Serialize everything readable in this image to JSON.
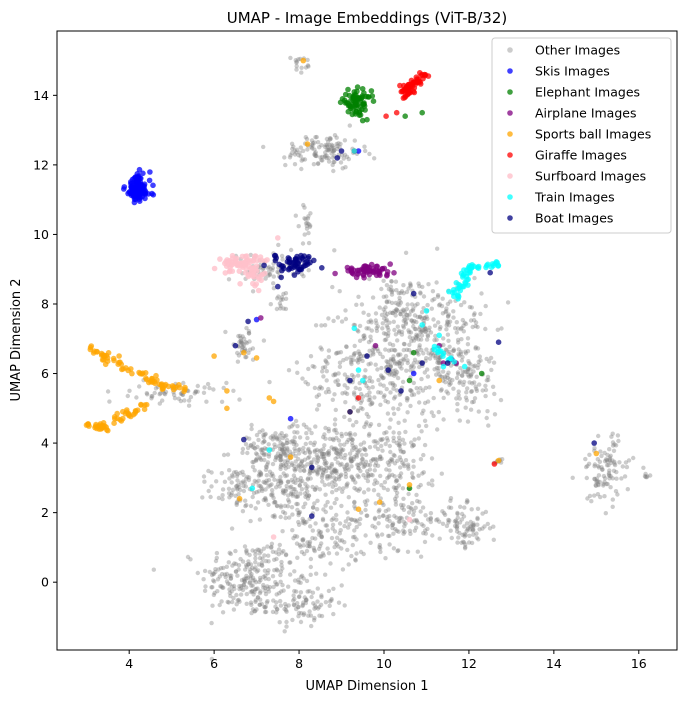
{
  "chart_data": {
    "type": "scatter",
    "title": "UMAP - Image Embeddings (ViT-B/32)",
    "xlabel": "UMAP Dimension 1",
    "ylabel": "UMAP Dimension 2",
    "xlim": [
      2.3,
      16.9
    ],
    "ylim": [
      -1.95,
      15.85
    ],
    "xticks": [
      4,
      6,
      8,
      10,
      12,
      14,
      16
    ],
    "yticks": [
      0,
      2,
      4,
      6,
      8,
      10,
      12,
      14
    ],
    "grid": false,
    "legend_position": "top-right",
    "series": [
      {
        "name": "Other Images",
        "color": "#808080",
        "opacity": 0.4,
        "clusters": [
          {
            "c": [
              6.8,
              0.1
            ],
            "s": [
              0.55,
              0.55
            ],
            "n": 220
          },
          {
            "c": [
              8.0,
              -0.6
            ],
            "s": [
              0.45,
              0.35
            ],
            "n": 100
          },
          {
            "c": [
              8.5,
              1.2
            ],
            "s": [
              0.55,
              0.45
            ],
            "n": 120
          },
          {
            "c": [
              7.9,
              2.7
            ],
            "s": [
              0.5,
              0.5
            ],
            "n": 180
          },
          {
            "c": [
              6.6,
              2.7
            ],
            "s": [
              0.35,
              0.3
            ],
            "n": 80
          },
          {
            "c": [
              7.4,
              3.8
            ],
            "s": [
              0.5,
              0.3
            ],
            "n": 120
          },
          {
            "c": [
              8.7,
              3.6
            ],
            "s": [
              0.65,
              0.5
            ],
            "n": 200
          },
          {
            "c": [
              10.0,
              3.4
            ],
            "s": [
              0.7,
              0.55
            ],
            "n": 170
          },
          {
            "c": [
              10.4,
              1.8
            ],
            "s": [
              0.6,
              0.4
            ],
            "n": 130
          },
          {
            "c": [
              11.9,
              1.6
            ],
            "s": [
              0.3,
              0.3
            ],
            "n": 80
          },
          {
            "c": [
              9.7,
              6.0
            ],
            "s": [
              0.8,
              1.0
            ],
            "n": 340
          },
          {
            "c": [
              11.2,
              7.0
            ],
            "s": [
              0.6,
              0.9
            ],
            "n": 260
          },
          {
            "c": [
              10.3,
              7.8
            ],
            "s": [
              0.5,
              0.5
            ],
            "n": 100
          },
          {
            "c": [
              12.0,
              5.8
            ],
            "s": [
              0.4,
              0.5
            ],
            "n": 90
          },
          {
            "c": [
              8.6,
              12.4
            ],
            "s": [
              0.45,
              0.25
            ],
            "n": 120
          },
          {
            "c": [
              7.2,
              9.0
            ],
            "s": [
              0.45,
              0.25
            ],
            "n": 70
          },
          {
            "c": [
              6.7,
              6.8
            ],
            "s": [
              0.2,
              0.25
            ],
            "n": 40
          },
          {
            "c": [
              5.2,
              5.45
            ],
            "s": [
              0.55,
              0.15
            ],
            "n": 60
          },
          {
            "c": [
              15.2,
              3.2
            ],
            "s": [
              0.3,
              0.5
            ],
            "n": 100
          },
          {
            "c": [
              8.0,
              14.9
            ],
            "s": [
              0.1,
              0.1
            ],
            "n": 15
          },
          {
            "c": [
              16.2,
              3.05
            ],
            "s": [
              0.05,
              0.03
            ],
            "n": 6
          },
          {
            "c": [
              12.7,
              3.5
            ],
            "s": [
              0.08,
              0.05
            ],
            "n": 8
          },
          {
            "c": [
              7.6,
              8.1
            ],
            "s": [
              0.12,
              0.12
            ],
            "n": 15
          },
          {
            "c": [
              8.2,
              10.3
            ],
            "s": [
              0.1,
              0.3
            ],
            "n": 20
          }
        ]
      },
      {
        "name": "Skis Images",
        "color": "#0000ff",
        "opacity": 0.75,
        "clusters": [
          {
            "c": [
              4.2,
              11.3
            ],
            "s": [
              0.15,
              0.22
            ],
            "n": 110
          }
        ],
        "points": [
          [
            7.0,
            7.55
          ],
          [
            7.8,
            4.7
          ],
          [
            9.4,
            12.4
          ],
          [
            10.7,
            6.0
          ]
        ]
      },
      {
        "name": "Elephant Images",
        "color": "#008000",
        "opacity": 0.75,
        "clusters": [
          {
            "c": [
              9.35,
              13.8
            ],
            "s": [
              0.17,
              0.17
            ],
            "n": 70
          }
        ],
        "points": [
          [
            9.6,
            13.3
          ],
          [
            10.9,
            13.5
          ],
          [
            9.3,
            14.1
          ],
          [
            12.3,
            6.0
          ],
          [
            10.6,
            2.7
          ],
          [
            10.6,
            5.8
          ],
          [
            10.7,
            6.6
          ],
          [
            10.5,
            13.4
          ]
        ]
      },
      {
        "name": "Airplane Images",
        "color": "#800080",
        "opacity": 0.75,
        "clusters": [
          {
            "c": [
              9.6,
              8.95
            ],
            "s": [
              0.3,
              0.07
            ],
            "n": 60
          }
        ],
        "points": [
          [
            7.1,
            7.6
          ],
          [
            9.8,
            6.8
          ],
          [
            11.4,
            6.3
          ],
          [
            11.6,
            6.4
          ],
          [
            11.3,
            6.8
          ],
          [
            11.7,
            6.3
          ]
        ]
      },
      {
        "name": "Sports ball Images",
        "color": "#ffa500",
        "opacity": 0.75,
        "linears": [
          {
            "from": [
              3.0,
              6.75
            ],
            "to": [
              4.7,
              5.75
            ],
            "n": 45,
            "jitter": 0.06
          },
          {
            "from": [
              3.2,
              4.4
            ],
            "to": [
              4.4,
              5.1
            ],
            "n": 35,
            "jitter": 0.06
          },
          {
            "from": [
              3.0,
              4.6
            ],
            "to": [
              3.5,
              4.4
            ],
            "n": 15,
            "jitter": 0.05
          },
          {
            "from": [
              4.7,
              5.6
            ],
            "to": [
              5.4,
              5.6
            ],
            "n": 14,
            "jitter": 0.05
          },
          {
            "from": [
              4.5,
              5.8
            ],
            "to": [
              4.8,
              5.6
            ],
            "n": 10,
            "jitter": 0.05
          }
        ],
        "points": [
          [
            8.1,
            15.0
          ],
          [
            8.2,
            12.6
          ],
          [
            6.0,
            6.5
          ],
          [
            6.3,
            5.5
          ],
          [
            6.6,
            2.4
          ],
          [
            7.3,
            5.3
          ],
          [
            7.4,
            5.2
          ],
          [
            7.8,
            3.6
          ],
          [
            9.9,
            2.3
          ],
          [
            9.4,
            2.1
          ],
          [
            10.6,
            2.8
          ],
          [
            11.3,
            5.8
          ],
          [
            12.7,
            3.5
          ],
          [
            15.0,
            3.7
          ],
          [
            9.2,
            4.9
          ],
          [
            6.7,
            6.6
          ],
          [
            7.0,
            6.45
          ],
          [
            6.3,
            5.0
          ]
        ]
      },
      {
        "name": "Giraffe Images",
        "color": "#ff0000",
        "opacity": 0.75,
        "linears": [
          {
            "from": [
              10.4,
              14.0
            ],
            "to": [
              10.95,
              14.6
            ],
            "n": 60,
            "jitter": 0.08
          }
        ],
        "points": [
          [
            10.05,
            13.4
          ],
          [
            9.3,
            12.4
          ],
          [
            12.6,
            3.4
          ],
          [
            9.4,
            5.3
          ],
          [
            10.3,
            13.5
          ]
        ]
      },
      {
        "name": "Surfboard Images",
        "color": "#ffc0cb",
        "opacity": 0.8,
        "clusters": [
          {
            "c": [
              6.6,
              9.15
            ],
            "s": [
              0.28,
              0.12
            ],
            "n": 60
          },
          {
            "c": [
              7.0,
              8.85
            ],
            "s": [
              0.15,
              0.15
            ],
            "n": 25
          }
        ],
        "points": [
          [
            7.5,
            9.9
          ],
          [
            7.4,
            1.3
          ],
          [
            10.6,
            1.8
          ]
        ]
      },
      {
        "name": "Train Images",
        "color": "#00ffff",
        "opacity": 0.75,
        "linears": [
          {
            "from": [
              11.65,
              8.2
            ],
            "to": [
              12.0,
              9.0
            ],
            "n": 35,
            "jitter": 0.07
          },
          {
            "from": [
              12.0,
              9.05
            ],
            "to": [
              12.75,
              9.15
            ],
            "n": 20,
            "jitter": 0.04
          },
          {
            "from": [
              11.0,
              6.9
            ],
            "to": [
              11.6,
              6.4
            ],
            "n": 12,
            "jitter": 0.05
          }
        ],
        "points": [
          [
            9.3,
            7.3
          ],
          [
            10.9,
            7.4
          ],
          [
            9.4,
            6.1
          ],
          [
            9.5,
            5.8
          ],
          [
            11.3,
            7.1
          ],
          [
            11.4,
            6.2
          ],
          [
            11.9,
            6.2
          ],
          [
            7.3,
            3.8
          ],
          [
            6.9,
            2.7
          ],
          [
            9.3,
            12.4
          ],
          [
            11.0,
            7.8
          ]
        ]
      },
      {
        "name": "Boat Images",
        "color": "#000080",
        "opacity": 0.75,
        "clusters": [
          {
            "c": [
              7.95,
              9.15
            ],
            "s": [
              0.22,
              0.14
            ],
            "n": 55
          }
        ],
        "points": [
          [
            7.5,
            8.5
          ],
          [
            6.8,
            7.5
          ],
          [
            6.5,
            6.8
          ],
          [
            6.7,
            4.1
          ],
          [
            8.3,
            3.3
          ],
          [
            8.3,
            1.9
          ],
          [
            9.2,
            5.8
          ],
          [
            9.6,
            6.5
          ],
          [
            10.4,
            5.5
          ],
          [
            10.1,
            6.1
          ],
          [
            10.9,
            6.3
          ],
          [
            11.5,
            6.3
          ],
          [
            12.7,
            6.9
          ],
          [
            12.5,
            8.9
          ],
          [
            14.95,
            4.0
          ],
          [
            8.9,
            12.2
          ],
          [
            9.0,
            12.4
          ],
          [
            9.2,
            4.9
          ],
          [
            10.7,
            8.3
          ]
        ]
      }
    ]
  }
}
